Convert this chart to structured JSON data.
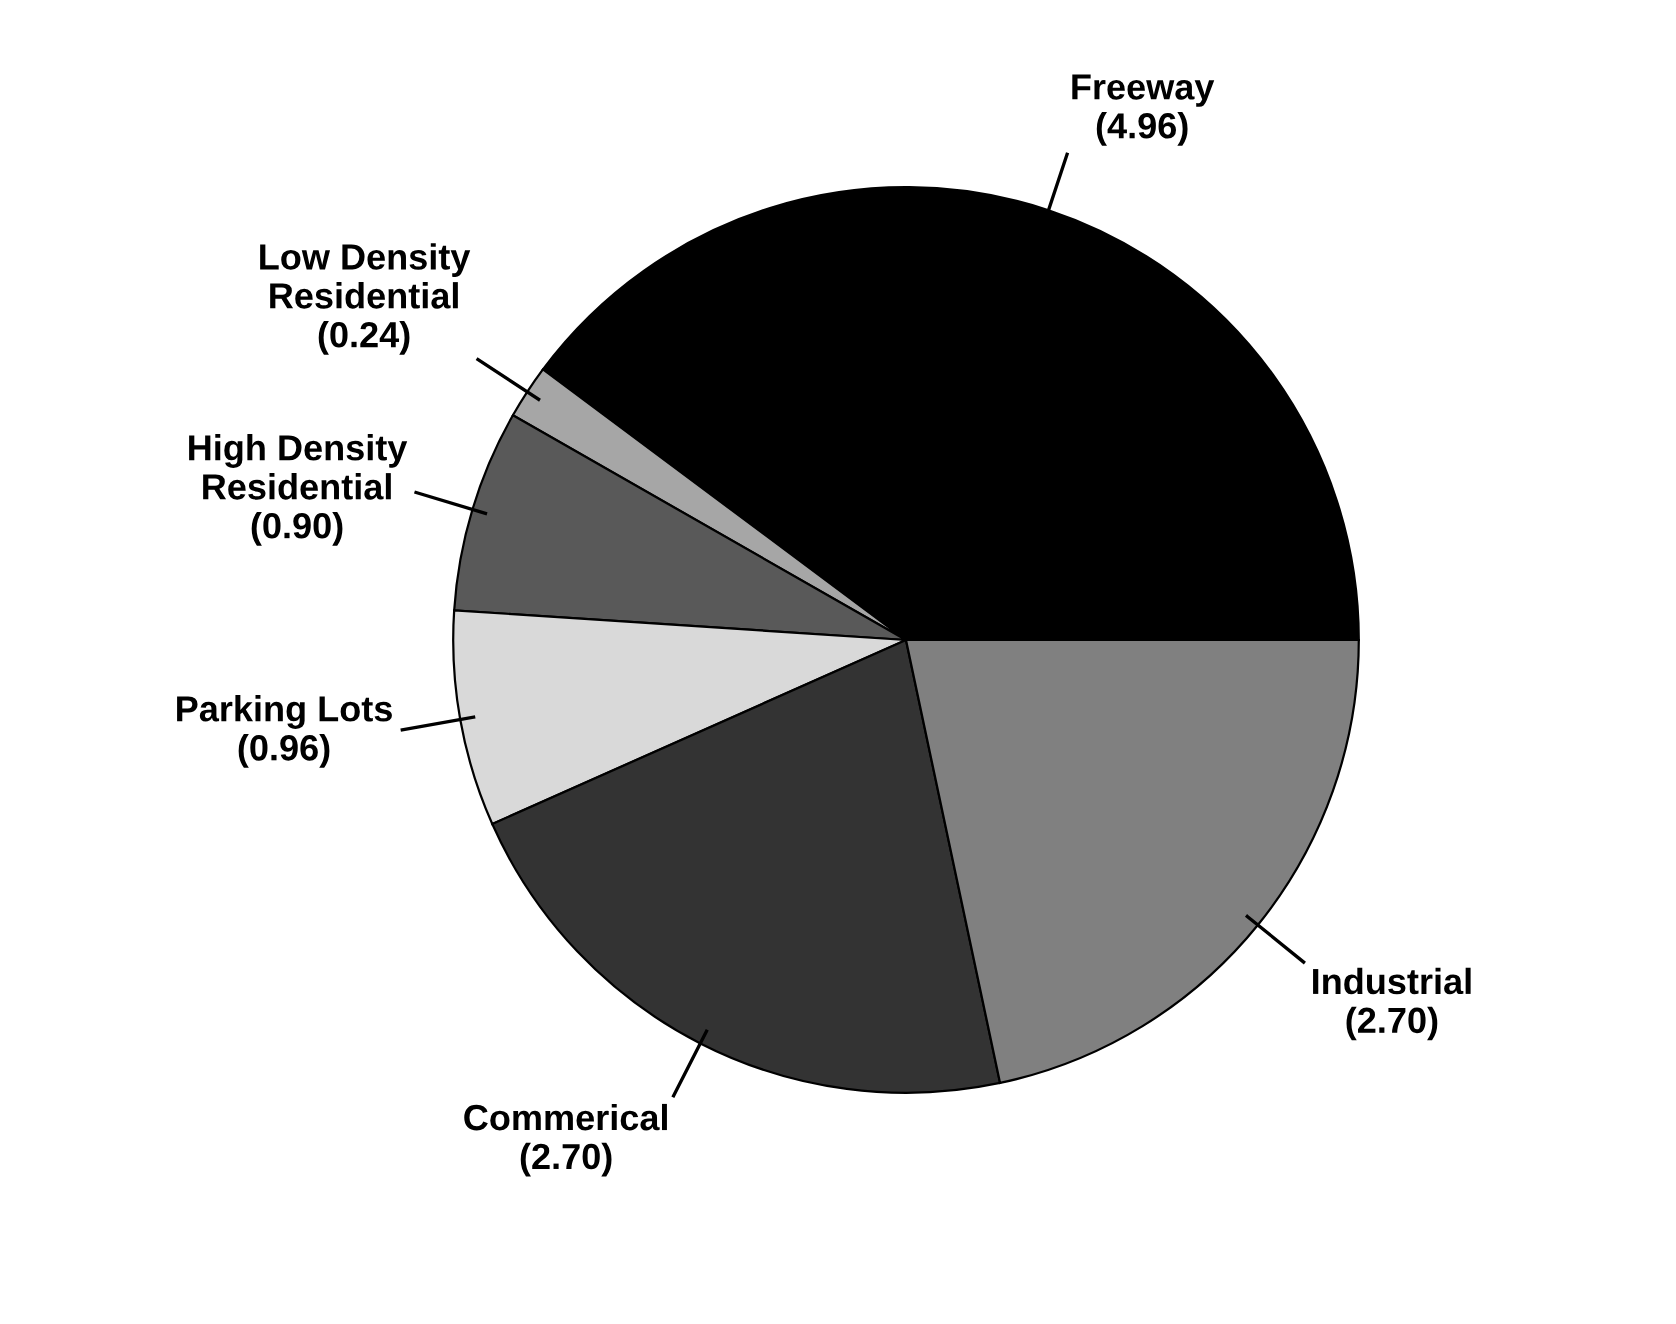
{
  "chart_data": {
    "type": "pie",
    "categories": [
      "Freeway",
      "Low Density\nResidential",
      "High Density\nResidential",
      "Parking Lots",
      "Commerical",
      "Industrial"
    ],
    "values": [
      4.96,
      0.24,
      0.9,
      0.96,
      2.7,
      2.7
    ],
    "value_labels": [
      "(4.96)",
      "(0.24)",
      "(0.90)",
      "(0.96)",
      "(2.70)",
      "(2.70)"
    ],
    "colors": [
      "#000000",
      "#a6a6a6",
      "#595959",
      "#d9d9d9",
      "#333333",
      "#808080"
    ],
    "legend": false
  }
}
